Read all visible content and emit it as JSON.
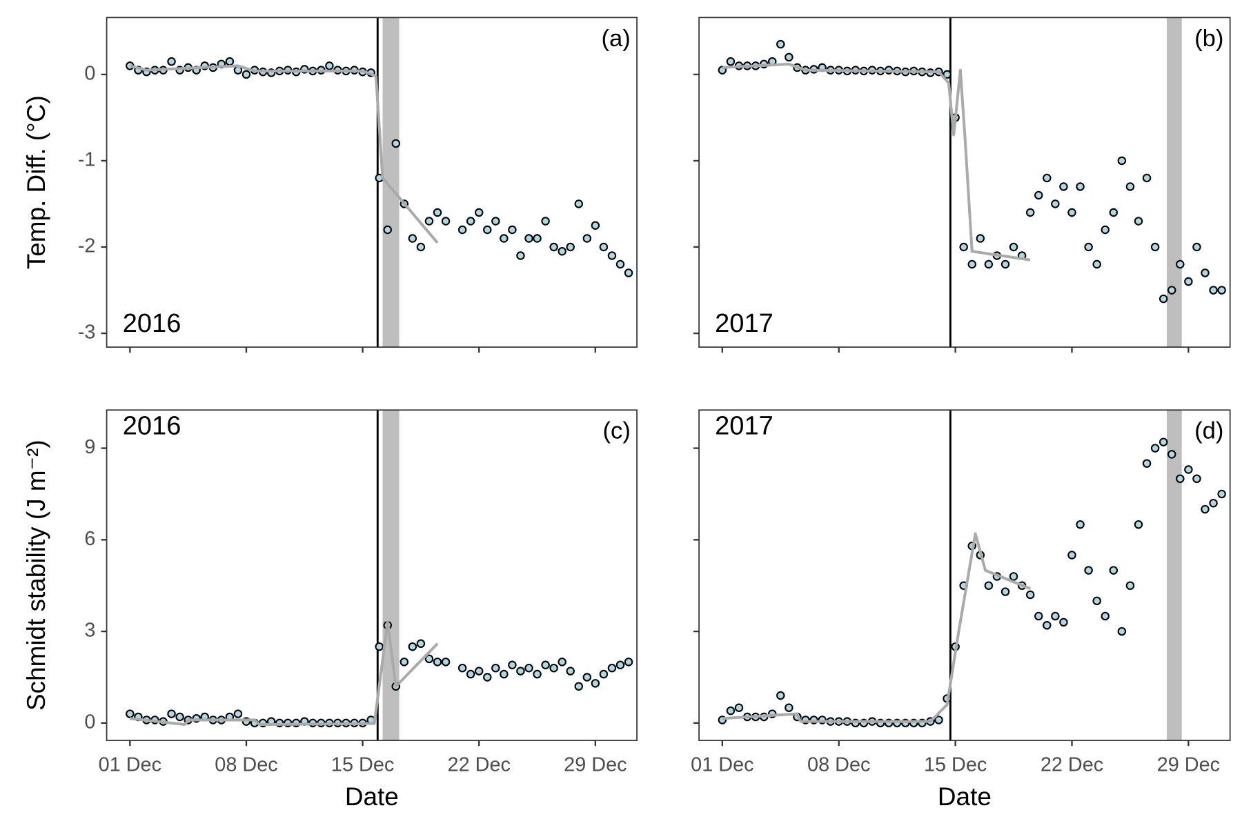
{
  "chart_data": [
    {
      "type": "scatter",
      "panel_label": "(a)",
      "year_label": "2016",
      "year_label_corner": "bottom-left",
      "ylabel": "Temp. Diff. (°C)",
      "x_tick_labels": false,
      "y_tick_labels": true,
      "xlim": [
        -0.4,
        31.5
      ],
      "ylim": [
        -3.16,
        0.66
      ],
      "xticks": [
        1,
        8,
        15,
        22,
        29
      ],
      "yticks": [
        0,
        -1,
        -2,
        -3
      ],
      "event_line": 15.9,
      "shade": [
        16.2,
        17.2
      ],
      "color": "#add8e6",
      "x": [
        1,
        1.5,
        2,
        2.5,
        3,
        3.5,
        4,
        4.5,
        5,
        5.5,
        6,
        6.5,
        7,
        7.5,
        8,
        8.5,
        9,
        9.5,
        10,
        10.5,
        11,
        11.5,
        12,
        12.5,
        13,
        13.5,
        14,
        14.5,
        15,
        15.5,
        16,
        16.5,
        17,
        17.5,
        18,
        18.5,
        19,
        19.5,
        20,
        20.5,
        21,
        21.5,
        22,
        22.5,
        23,
        23.5,
        24,
        24.5,
        25,
        25.5,
        26,
        26.5,
        27,
        27.5,
        28,
        28.5,
        29,
        29.5,
        30,
        30.5,
        31
      ],
      "values": [
        0.1,
        0.05,
        0.03,
        0.05,
        0.05,
        0.15,
        0.05,
        0.08,
        0.05,
        0.1,
        0.08,
        0.12,
        0.15,
        0.05,
        0.0,
        0.05,
        0.03,
        0.02,
        0.04,
        0.05,
        0.03,
        0.06,
        0.04,
        0.05,
        0.1,
        0.05,
        0.04,
        0.05,
        0.03,
        0.02,
        -1.2,
        -1.8,
        -0.8,
        -1.5,
        -1.9,
        -2.0,
        -1.7,
        -1.6,
        -1.7,
        null,
        -1.8,
        -1.7,
        -1.6,
        -1.8,
        -1.7,
        -1.9,
        -1.8,
        -2.1,
        -1.9,
        -1.9,
        -1.7,
        -2.0,
        -2.05,
        -2.0,
        -1.5,
        -1.9,
        -1.75,
        -2.0,
        -2.1,
        -2.2,
        -2.3
      ],
      "trend": {
        "color": "#aaaaaa",
        "x": [
          1,
          2,
          7.5,
          8.5,
          15,
          15.8,
          16.2,
          19.5
        ],
        "values": [
          0.1,
          0.05,
          0.1,
          0.04,
          0.04,
          -0.02,
          -1.2,
          -1.95
        ]
      }
    },
    {
      "type": "scatter",
      "panel_label": "(b)",
      "year_label": "2017",
      "year_label_corner": "bottom-left",
      "x_tick_labels": false,
      "y_tick_labels": false,
      "xlim": [
        -0.4,
        31.5
      ],
      "ylim": [
        -3.16,
        0.66
      ],
      "xticks": [
        1,
        8,
        15,
        22,
        29
      ],
      "yticks": [
        0,
        -1,
        -2,
        -3
      ],
      "event_line": 14.7,
      "shade": [
        27.7,
        28.6
      ],
      "color": "#add8e6",
      "x": [
        1,
        1.5,
        2,
        2.5,
        3,
        3.5,
        4,
        4.5,
        5,
        5.5,
        6,
        6.5,
        7,
        7.5,
        8,
        8.5,
        9,
        9.5,
        10,
        10.5,
        11,
        11.5,
        12,
        12.5,
        13,
        13.5,
        14,
        14.5,
        15,
        15.5,
        16,
        16.5,
        17,
        17.5,
        18,
        18.5,
        19,
        19.5,
        20,
        20.5,
        21,
        21.5,
        22,
        22.5,
        23,
        23.5,
        24,
        24.5,
        25,
        25.5,
        26,
        26.5,
        27,
        27.5,
        28,
        28.5,
        29,
        29.5,
        30,
        30.5,
        31
      ],
      "values": [
        0.05,
        0.15,
        0.1,
        0.1,
        0.1,
        0.12,
        0.15,
        0.35,
        0.2,
        0.08,
        0.05,
        0.06,
        0.08,
        0.05,
        0.05,
        0.04,
        0.05,
        0.04,
        0.05,
        0.04,
        0.05,
        0.04,
        0.03,
        0.04,
        0.03,
        0.02,
        0.03,
        0.0,
        -0.5,
        -2.0,
        -2.2,
        -1.9,
        -2.2,
        -2.1,
        -2.2,
        -2.0,
        -2.1,
        -1.6,
        -1.4,
        -1.2,
        -1.5,
        -1.3,
        -1.6,
        -1.3,
        -2.0,
        -2.2,
        -1.8,
        -1.6,
        -1.0,
        -1.3,
        -1.7,
        -1.2,
        -2.0,
        -2.6,
        -2.5,
        -2.2,
        -2.4,
        -2.0,
        -2.3,
        -2.5,
        -2.5
      ],
      "trend": {
        "color": "#aaaaaa",
        "x": [
          1,
          5,
          6,
          14,
          14.6,
          14.9,
          15.3,
          15.6,
          16,
          19.5
        ],
        "values": [
          0.08,
          0.12,
          0.05,
          0.03,
          -0.1,
          -0.7,
          0.05,
          -0.8,
          -2.05,
          -2.15
        ]
      }
    },
    {
      "type": "scatter",
      "panel_label": "(c)",
      "year_label": "2016",
      "year_label_corner": "top-left",
      "ylabel": "Schmidt stability (J m⁻²)",
      "xlabel": "Date",
      "x_tick_labels": true,
      "y_tick_labels": true,
      "xlim": [
        -0.4,
        31.5
      ],
      "ylim": [
        -0.57,
        10.25
      ],
      "xticks": [
        {
          "value": 1,
          "label": "01 Dec"
        },
        {
          "value": 8,
          "label": "08 Dec"
        },
        {
          "value": 15,
          "label": "15 Dec"
        },
        {
          "value": 22,
          "label": "22 Dec"
        },
        {
          "value": 29,
          "label": "29 Dec"
        }
      ],
      "yticks": [
        0,
        3,
        6,
        9
      ],
      "event_line": 15.9,
      "shade": [
        16.2,
        17.2
      ],
      "color": "#add8e6",
      "x": [
        1,
        1.5,
        2,
        2.5,
        3,
        3.5,
        4,
        4.5,
        5,
        5.5,
        6,
        6.5,
        7,
        7.5,
        8,
        8.5,
        9,
        9.5,
        10,
        10.5,
        11,
        11.5,
        12,
        12.5,
        13,
        13.5,
        14,
        14.5,
        15,
        15.5,
        16,
        16.5,
        17,
        17.5,
        18,
        18.5,
        19,
        19.5,
        20,
        20.5,
        21,
        21.5,
        22,
        22.5,
        23,
        23.5,
        24,
        24.5,
        25,
        25.5,
        26,
        26.5,
        27,
        27.5,
        28,
        28.5,
        29,
        29.5,
        30,
        30.5,
        31
      ],
      "values": [
        0.3,
        0.2,
        0.1,
        0.1,
        0.05,
        0.3,
        0.2,
        0.1,
        0.15,
        0.2,
        0.1,
        0.1,
        0.2,
        0.3,
        0.05,
        0.0,
        0.0,
        0.05,
        0.0,
        0.0,
        0.0,
        0.05,
        0.0,
        0.0,
        0.0,
        0.0,
        0.0,
        0.0,
        0.0,
        0.1,
        2.5,
        3.2,
        1.2,
        2.0,
        2.5,
        2.6,
        2.1,
        2.0,
        2.0,
        null,
        1.8,
        1.6,
        1.7,
        1.5,
        1.8,
        1.6,
        1.9,
        1.7,
        1.8,
        1.6,
        1.9,
        1.8,
        2.0,
        1.7,
        1.2,
        1.5,
        1.3,
        1.6,
        1.8,
        1.9,
        2.0
      ],
      "trend": {
        "color": "#aaaaaa",
        "x": [
          1,
          4.3,
          4.5,
          8.5,
          8.8,
          15.7,
          16.5,
          17,
          19.5
        ],
        "values": [
          0.15,
          -0.05,
          0.1,
          0.1,
          -0.05,
          -0.02,
          3.3,
          1.2,
          2.6
        ]
      }
    },
    {
      "type": "scatter",
      "panel_label": "(d)",
      "year_label": "2017",
      "year_label_corner": "top-left",
      "xlabel": "Date",
      "x_tick_labels": true,
      "y_tick_labels": false,
      "xlim": [
        -0.4,
        31.5
      ],
      "ylim": [
        -0.57,
        10.25
      ],
      "xticks": [
        {
          "value": 1,
          "label": "01 Dec"
        },
        {
          "value": 8,
          "label": "08 Dec"
        },
        {
          "value": 15,
          "label": "15 Dec"
        },
        {
          "value": 22,
          "label": "22 Dec"
        },
        {
          "value": 29,
          "label": "29 Dec"
        }
      ],
      "yticks": [
        0,
        3,
        6,
        9
      ],
      "event_line": 14.7,
      "shade": [
        27.7,
        28.6
      ],
      "color": "#add8e6",
      "x": [
        1,
        1.5,
        2,
        2.5,
        3,
        3.5,
        4,
        4.5,
        5,
        5.5,
        6,
        6.5,
        7,
        7.5,
        8,
        8.5,
        9,
        9.5,
        10,
        10.5,
        11,
        11.5,
        12,
        12.5,
        13,
        13.5,
        14,
        14.5,
        15,
        15.5,
        16,
        16.5,
        17,
        17.5,
        18,
        18.5,
        19,
        19.5,
        20,
        20.5,
        21,
        21.5,
        22,
        22.5,
        23,
        23.5,
        24,
        24.5,
        25,
        25.5,
        26,
        26.5,
        27,
        27.5,
        28,
        28.5,
        29,
        29.5,
        30,
        30.5,
        31
      ],
      "values": [
        0.1,
        0.4,
        0.5,
        0.2,
        0.2,
        0.2,
        0.3,
        0.9,
        0.5,
        0.2,
        0.1,
        0.1,
        0.1,
        0.05,
        0.05,
        0.05,
        0.0,
        0.0,
        0.05,
        0.0,
        0.0,
        0.0,
        0.0,
        0.0,
        0.0,
        0.05,
        0.1,
        0.8,
        2.5,
        4.5,
        5.8,
        5.5,
        4.5,
        4.8,
        4.3,
        4.8,
        4.5,
        4.2,
        3.5,
        3.2,
        3.5,
        3.3,
        5.5,
        6.5,
        5.0,
        4.0,
        3.5,
        5.0,
        3.0,
        4.5,
        6.5,
        8.5,
        9.0,
        9.2,
        8.8,
        8.0,
        8.3,
        8.0,
        7.0,
        7.2,
        7.5
      ],
      "trend": {
        "color": "#aaaaaa",
        "x": [
          1,
          5.5,
          5.7,
          13.5,
          14.5,
          15.2,
          16.2,
          16.8,
          19.5
        ],
        "values": [
          0.15,
          0.3,
          0.05,
          0.05,
          0.6,
          3.0,
          6.2,
          5.0,
          4.4
        ]
      }
    }
  ]
}
